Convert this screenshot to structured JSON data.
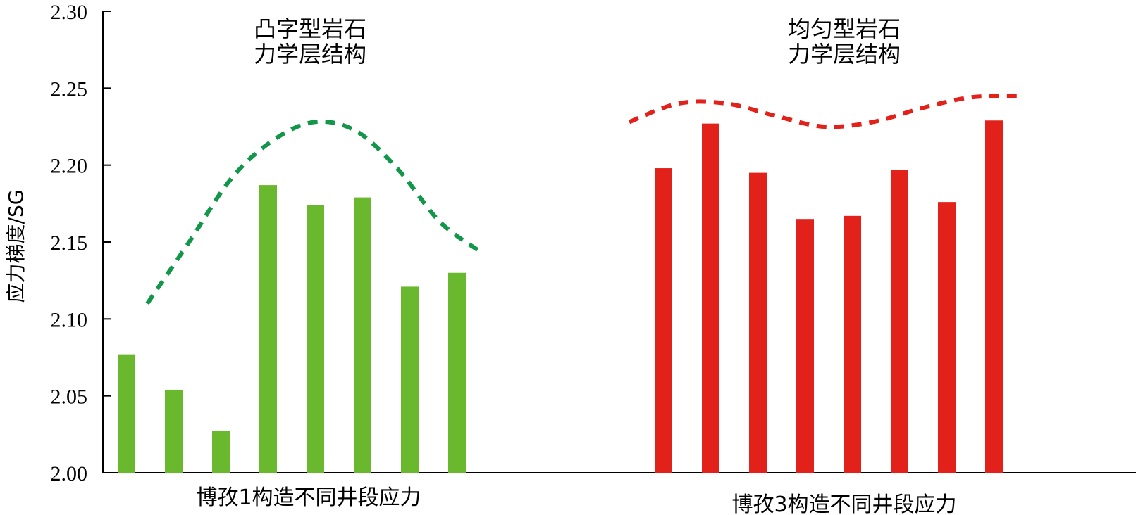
{
  "chart_data": {
    "type": "bar",
    "ylabel": "应力梯度/SG",
    "ylim": [
      2.0,
      2.3
    ],
    "yticks": [
      "2.00",
      "2.05",
      "2.10",
      "2.15",
      "2.20",
      "2.25",
      "2.30"
    ],
    "grid": false,
    "groups": [
      {
        "label": "博孜1构造不同井段应力",
        "annotation": [
          "凸字型岩石",
          "力学层结构"
        ],
        "color": "#6ab82e",
        "trend_color": "#12964a",
        "values": [
          2.077,
          2.054,
          2.027,
          2.187,
          2.174,
          2.179,
          2.121,
          2.13
        ],
        "trend": [
          2.11,
          2.15,
          2.191,
          2.216,
          2.228,
          2.222,
          2.197,
          2.163,
          2.143
        ]
      },
      {
        "label": "博孜3构造不同井段应力",
        "annotation": [
          "均匀型岩石",
          "力学层结构"
        ],
        "color": "#e3211b",
        "trend_color": "#e3211b",
        "values": [
          2.198,
          2.227,
          2.195,
          2.165,
          2.167,
          2.197,
          2.176,
          2.229
        ],
        "trend": [
          2.228,
          2.24,
          2.24,
          2.232,
          2.225,
          2.228,
          2.237,
          2.244,
          2.245
        ]
      }
    ]
  }
}
